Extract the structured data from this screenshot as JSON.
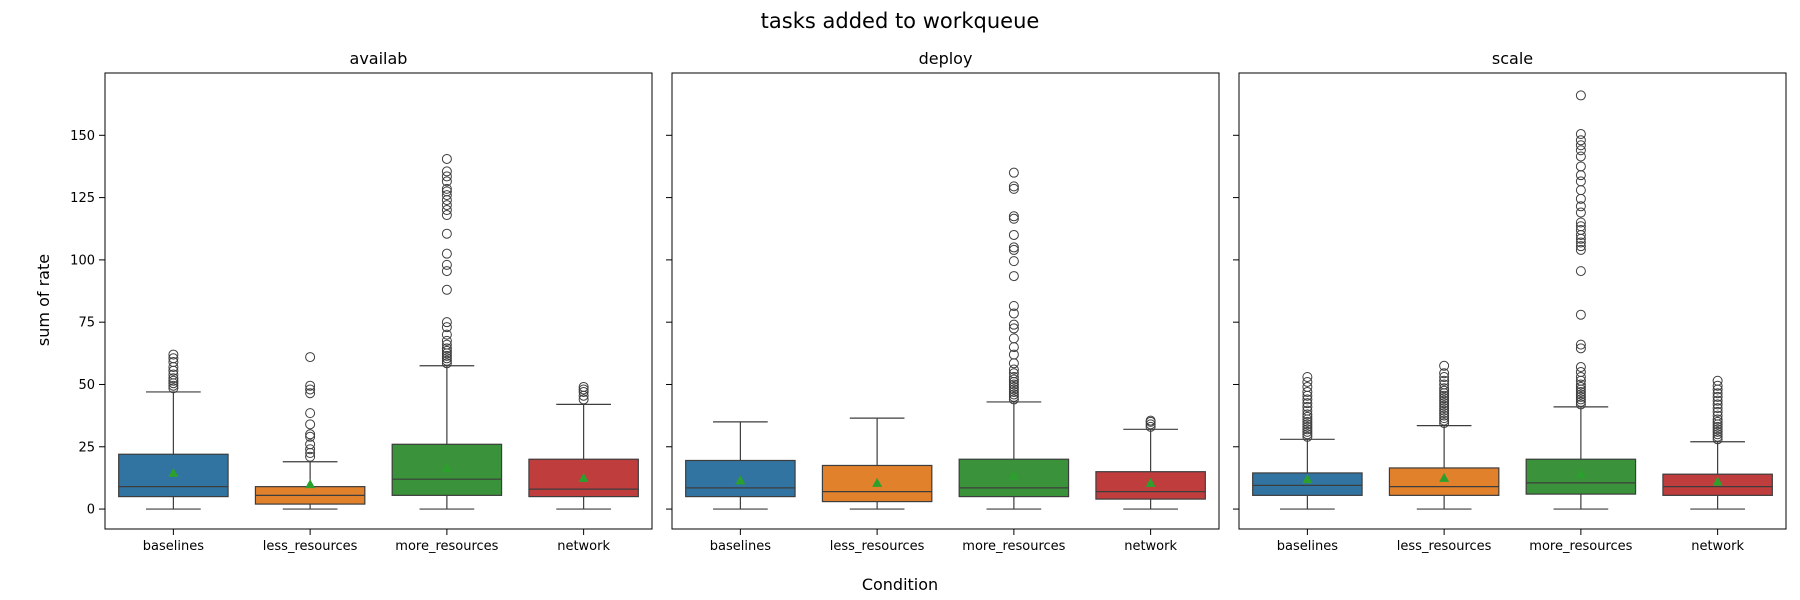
{
  "chart_data": {
    "type": "box",
    "title": "tasks added to workqueue",
    "xlabel": "Condition",
    "ylabel": "sum of rate",
    "categories": [
      "baselines",
      "less_resources",
      "more_resources",
      "network"
    ],
    "ylim": [
      -8,
      175
    ],
    "yticks": [
      0,
      25,
      50,
      75,
      100,
      125,
      150
    ],
    "colors": {
      "baselines": "#3274a1",
      "less_resources": "#e1812c",
      "more_resources": "#3a923a",
      "network": "#c03d3e"
    },
    "mean_color": "#2ca02c",
    "panels": [
      {
        "title": "availab",
        "boxes": [
          {
            "category": "baselines",
            "min": 0,
            "q1": 5,
            "median": 9,
            "q3": 22,
            "max": 47,
            "mean": 14.5,
            "outliers": [
              48.5,
              49.5,
              50.5,
              51.5,
              52.5,
              54,
              55.5,
              57,
              59,
              60.5,
              62
            ]
          },
          {
            "category": "less_resources",
            "min": 0,
            "q1": 2,
            "median": 5.5,
            "q3": 9,
            "max": 19,
            "mean": 10,
            "outliers": [
              21,
              22.5,
              24,
              26,
              29,
              30,
              34,
              38.5,
              46.5,
              48,
              49.5,
              61
            ]
          },
          {
            "category": "more_resources",
            "min": 0,
            "q1": 5.5,
            "median": 12,
            "q3": 26,
            "max": 57.5,
            "mean": 16.5,
            "outliers": [
              58.5,
              59.5,
              60.5,
              61.5,
              62.5,
              63.5,
              64.5,
              66,
              67.5,
              70,
              73,
              75,
              88,
              95.5,
              98,
              102.5,
              110.5,
              118,
              120,
              122,
              124,
              126,
              127.5,
              128.5,
              131.5,
              133.5,
              135.5,
              140.5
            ]
          },
          {
            "category": "network",
            "min": 0,
            "q1": 5,
            "median": 8,
            "q3": 20,
            "max": 42,
            "mean": 12.5,
            "outliers": [
              44,
              45.5,
              47,
              48,
              49
            ]
          }
        ]
      },
      {
        "title": "deploy",
        "boxes": [
          {
            "category": "baselines",
            "min": 0,
            "q1": 5,
            "median": 8.5,
            "q3": 19.5,
            "max": 35,
            "mean": 11.5,
            "outliers": []
          },
          {
            "category": "less_resources",
            "min": 0,
            "q1": 3,
            "median": 7,
            "q3": 17.5,
            "max": 36.5,
            "mean": 10.5,
            "outliers": []
          },
          {
            "category": "more_resources",
            "min": 0,
            "q1": 5,
            "median": 8.5,
            "q3": 20,
            "max": 43,
            "mean": 13.5,
            "outliers": [
              44,
              45,
              46,
              47,
              48,
              49,
              50,
              51,
              52,
              53,
              54.5,
              56,
              58.5,
              62,
              65,
              68.5,
              72.5,
              74,
              78.5,
              81.5,
              93.5,
              99.5,
              104,
              105,
              110,
              116.5,
              117.5,
              128.5,
              129.5,
              135
            ]
          },
          {
            "category": "network",
            "min": 0,
            "q1": 4,
            "median": 7,
            "q3": 15,
            "max": 32,
            "mean": 10.5,
            "outliers": [
              33,
              34,
              35,
              35.5
            ]
          }
        ]
      },
      {
        "title": "scale",
        "boxes": [
          {
            "category": "baselines",
            "min": 0,
            "q1": 5.5,
            "median": 9.5,
            "q3": 14.5,
            "max": 28,
            "mean": 12,
            "outliers": [
              29,
              30,
              31,
              32,
              33,
              34,
              35,
              36,
              37,
              38,
              39.5,
              41,
              42.5,
              44,
              45.5,
              47,
              49,
              51,
              53
            ]
          },
          {
            "category": "less_resources",
            "min": 0,
            "q1": 5.5,
            "median": 9,
            "q3": 16.5,
            "max": 33.5,
            "mean": 12.5,
            "outliers": [
              34.5,
              35.5,
              36.5,
              37.5,
              38.5,
              39.5,
              40.5,
              41.5,
              42.5,
              43.5,
              44.5,
              45.5,
              46.5,
              47.5,
              48.5,
              50,
              51.5,
              53,
              54.5,
              57.5
            ]
          },
          {
            "category": "more_resources",
            "min": 0,
            "q1": 6,
            "median": 10.5,
            "q3": 20,
            "max": 41,
            "mean": 14,
            "outliers": [
              42,
              43,
              44,
              45,
              46,
              47,
              48,
              49,
              50,
              51.5,
              53,
              55,
              57,
              64.5,
              66,
              78,
              95.5,
              104,
              105.5,
              107,
              108.5,
              110,
              112,
              113.5,
              115,
              119,
              121.5,
              124.5,
              128,
              131.5,
              134,
              137.5,
              141.5,
              144,
              146,
              148,
              150.5,
              166
            ]
          },
          {
            "category": "network",
            "min": 0,
            "q1": 5.5,
            "median": 9,
            "q3": 14,
            "max": 27,
            "mean": 11,
            "outliers": [
              28,
              29,
              30,
              31,
              32,
              33,
              34,
              35,
              36,
              37.5,
              39,
              40.5,
              42,
              43.5,
              45,
              46.5,
              48,
              49.5,
              51.5
            ]
          }
        ]
      }
    ]
  }
}
